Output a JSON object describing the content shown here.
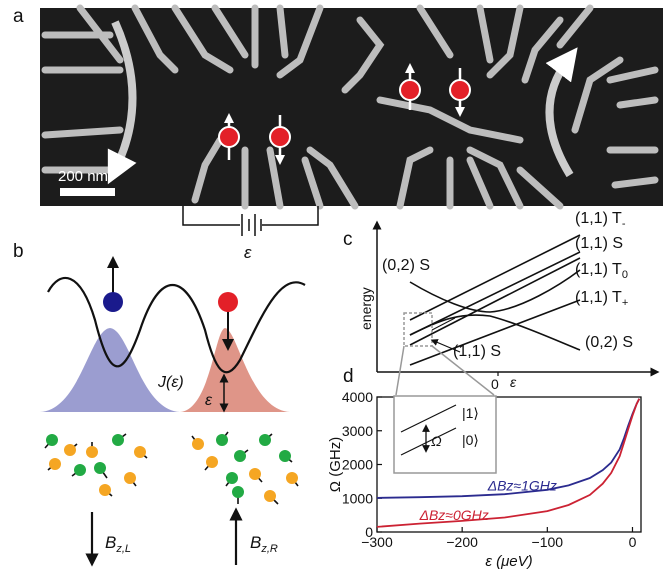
{
  "panels": {
    "a": "a",
    "b": "b",
    "c": "c",
    "d": "d"
  },
  "panel_a": {
    "scale_bar_label": "200 nm",
    "bias_label": "ε"
  },
  "panel_b": {
    "exchange_label": "J(ε)",
    "detuning_label": "ε",
    "field_left": {
      "main": "B",
      "sub": "z,L"
    },
    "field_right": {
      "main": "B",
      "sub": "z,R"
    },
    "colors": {
      "left_spin": "#1a1a8c",
      "right_spin": "#e32028",
      "left_well": "#8a8cc8",
      "right_well": "#d98373",
      "nuc_green": "#22aa44",
      "nuc_orange": "#f5a623"
    }
  },
  "panel_c": {
    "ylabel": "energy",
    "x_tick": "0",
    "xlabel": "ε",
    "state_labels": {
      "t_minus": {
        "main": "(1,1) T",
        "sub": "-"
      },
      "s11_right": "(1,1) S",
      "t_zero": {
        "main": "(1,1) T",
        "sub": "0"
      },
      "t_plus": {
        "main": "(1,1) T",
        "sub": "+"
      },
      "s02_left": "(0,2) S",
      "s02_right": "(0,2) S",
      "s11_bottom": "(1,1) S"
    }
  },
  "inset": {
    "state_1": "|1⟩",
    "state_0": "|0⟩",
    "gap_label": "Ω"
  },
  "chart_data": {
    "type": "line",
    "title": "",
    "xlabel": "ε (μeV)",
    "ylabel": "Ω (GHz)",
    "xlim": [
      -300,
      10
    ],
    "ylim": [
      0,
      4000
    ],
    "x_ticks": [
      -300,
      -200,
      -100,
      0
    ],
    "y_ticks": [
      0,
      1000,
      2000,
      3000,
      4000
    ],
    "x_tick_labels": [
      "−300",
      "−200",
      "−100",
      "0"
    ],
    "y_tick_labels": [
      "0",
      "1000",
      "2000",
      "3000",
      "4000"
    ],
    "grid": false,
    "series": [
      {
        "name": "ΔBz≈1GHz",
        "color": "#2b2b8f",
        "x": [
          -300,
          -250,
          -200,
          -150,
          -100,
          -75,
          -50,
          -35,
          -25,
          -15,
          -10,
          -5,
          0,
          5,
          8
        ],
        "values": [
          1010,
          1030,
          1060,
          1120,
          1250,
          1380,
          1600,
          1830,
          2060,
          2450,
          2780,
          3150,
          3500,
          3800,
          3950
        ]
      },
      {
        "name": "ΔBz≈0GHz",
        "color": "#cc2233",
        "x": [
          -300,
          -250,
          -200,
          -150,
          -100,
          -75,
          -50,
          -35,
          -25,
          -15,
          -10,
          -5,
          0,
          5,
          8
        ],
        "values": [
          150,
          250,
          330,
          430,
          620,
          800,
          1100,
          1430,
          1750,
          2250,
          2650,
          3050,
          3450,
          3800,
          3950
        ]
      }
    ]
  }
}
